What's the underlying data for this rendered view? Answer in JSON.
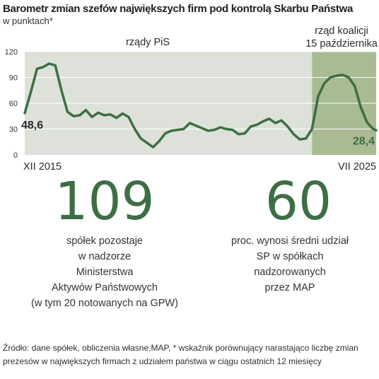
{
  "header": {
    "title": "Barometr zmian szefów największych firm pod kontrolą Skarbu Państwa",
    "subtitle": "w punktach*"
  },
  "colors": {
    "line": "#3d6e45",
    "period_pis_bg": "#dde1d9",
    "period_coalition_bg": "#a9bb92",
    "grid": "#ffffff",
    "big_number": "#3d6e45"
  },
  "chart_data": {
    "type": "line",
    "title": "Barometr zmian szefów największych firm pod kontrolą Skarbu Państwa",
    "subtitle": "w punktach*",
    "ylim": [
      0,
      120
    ],
    "y_ticks": [
      "0",
      "30",
      "60",
      "90",
      "120"
    ],
    "x_labels": [
      "XII 2015",
      "VII 2025"
    ],
    "x_range": [
      "2015-12",
      "2025-07"
    ],
    "grid": true,
    "periods": [
      {
        "label": "rządy PiS",
        "start": "2015-12",
        "end": "2023-10"
      },
      {
        "label": "rząd koalicji\n15 października",
        "start": "2023-10",
        "end": "2025-07"
      }
    ],
    "annotations": [
      {
        "text": "48,6",
        "x": "2015-12",
        "y": 48.6
      },
      {
        "text": "28,4",
        "x": "2025-07",
        "y": 28.4
      }
    ],
    "series": [
      {
        "x": [
          "2015-12",
          "2016-02",
          "2016-04",
          "2016-06",
          "2016-08",
          "2016-10",
          "2016-12",
          "2017-02",
          "2017-04",
          "2017-06",
          "2017-08",
          "2017-10",
          "2017-12",
          "2018-02",
          "2018-04",
          "2018-06",
          "2018-08",
          "2018-10",
          "2018-12",
          "2019-02",
          "2019-04",
          "2019-06",
          "2019-08",
          "2019-10",
          "2019-12",
          "2020-02",
          "2020-04",
          "2020-06",
          "2020-08",
          "2020-10",
          "2020-12",
          "2021-02",
          "2021-04",
          "2021-06",
          "2021-08",
          "2021-10",
          "2021-12",
          "2022-02",
          "2022-04",
          "2022-06",
          "2022-08",
          "2022-10",
          "2022-12",
          "2023-02",
          "2023-04",
          "2023-06",
          "2023-08",
          "2023-10",
          "2023-12",
          "2024-02",
          "2024-04",
          "2024-06",
          "2024-08",
          "2024-10",
          "2024-12",
          "2025-02",
          "2025-04",
          "2025-06",
          "2025-07"
        ],
        "values": [
          48.6,
          73,
          100,
          102,
          106,
          104,
          75,
          50,
          45,
          46,
          52,
          44,
          49,
          46,
          47,
          43,
          48,
          44,
          30,
          19,
          14,
          9,
          16,
          25,
          28,
          29,
          30,
          37,
          34,
          31,
          28,
          29,
          32,
          30,
          29,
          24,
          25,
          33,
          35,
          39,
          42,
          37,
          40,
          33,
          24,
          18,
          19,
          30,
          68,
          83,
          90,
          92,
          93,
          90,
          80,
          55,
          38,
          30,
          28.4
        ]
      }
    ]
  },
  "stats": [
    {
      "number": "109",
      "text": "spółek pozostaje\nw nadzorze\nMinisterstwa\nAktywów Państwowych\n(w tym 20 notowanych na GPW)"
    },
    {
      "number": "60",
      "text": "proc. wynosi średni udział\nSP w spółkach\nnadzorowanych\nprzez MAP"
    }
  ],
  "footer": {
    "text": "Źródło: dane spółek, obliczenia własne,MAP, * wskaźnik porównujący narastająco liczbę zmian prezesów w największych firmach z udziałem państwa  w ciągu ostatnich 12 miesięcy"
  }
}
